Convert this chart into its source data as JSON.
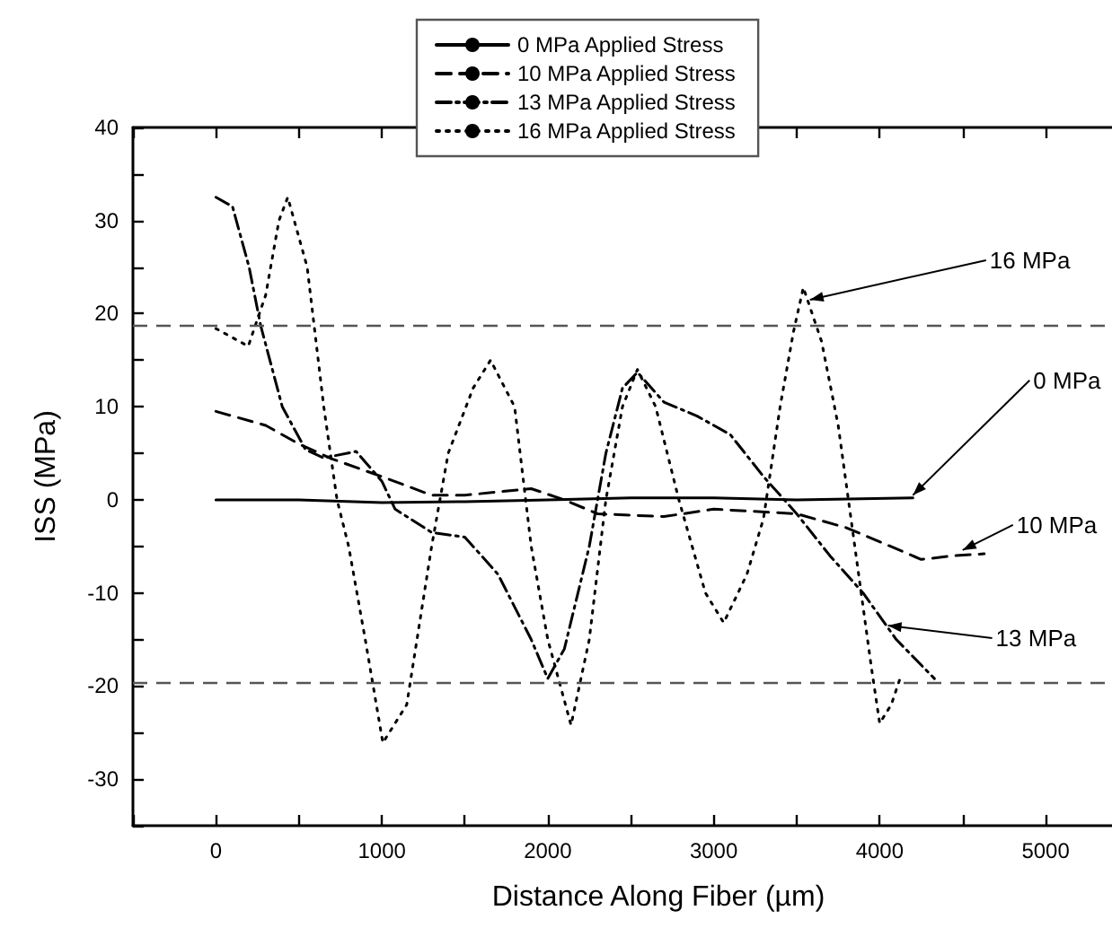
{
  "chart_data": {
    "type": "line",
    "xlabel": "Distance Along Fiber (µm)",
    "ylabel": "ISS (MPa)",
    "xlim": [
      -500,
      5400
    ],
    "ylim": [
      -35,
      40
    ],
    "xticks": [
      {
        "value": -500,
        "label": null
      },
      0,
      {
        "value": 500,
        "label": null
      },
      1000,
      {
        "value": 1500,
        "label": null
      },
      2000,
      {
        "value": 2500,
        "label": null
      },
      3000,
      {
        "value": 3500,
        "label": null
      },
      4000,
      {
        "value": 4500,
        "label": null
      },
      5000
    ],
    "yticks": [
      {
        "value": -35,
        "label": null
      },
      -30,
      {
        "value": -25,
        "label": null
      },
      -20,
      {
        "value": -15,
        "label": null
      },
      -10,
      {
        "value": -5,
        "label": null
      },
      0,
      {
        "value": 5,
        "label": null
      },
      10,
      {
        "value": 15,
        "label": null
      },
      20,
      {
        "value": 25,
        "label": null
      },
      30,
      {
        "value": 35,
        "label": null
      },
      40
    ],
    "grid": false,
    "legend": "top",
    "marker": "none",
    "series": [
      {
        "name": "0 MPa Applied Stress",
        "color": "#000000",
        "line_style": "solid",
        "x": [
          0,
          500,
          1000,
          1500,
          2000,
          2500,
          3000,
          3500,
          4200
        ],
        "values": [
          0,
          0,
          -0.3,
          -0.2,
          0,
          0.2,
          0.2,
          0,
          0.2
        ]
      },
      {
        "name": "10 MPa Applied Stress",
        "color": "#000000",
        "line_style": "dashed",
        "x": [
          0,
          300,
          500,
          700,
          1000,
          1300,
          1500,
          1900,
          2100,
          2300,
          2700,
          3000,
          3500,
          3800,
          4000,
          4250,
          4450,
          4630
        ],
        "values": [
          9.5,
          8,
          6,
          4.4,
          2.5,
          0.5,
          0.5,
          1.2,
          0,
          -1.5,
          -1.8,
          -1,
          -1.5,
          -3,
          -4.5,
          -6.4,
          -6,
          -5.8
        ]
      },
      {
        "name": "13 MPa Applied Stress",
        "color": "#000000",
        "line_style": "dash-dot",
        "x": [
          0,
          100,
          200,
          270,
          400,
          540,
          650,
          845,
          1000,
          1080,
          1300,
          1500,
          1700,
          1900,
          2000,
          2100,
          2250,
          2350,
          2450,
          2540,
          2700,
          2900,
          3100,
          3300,
          3500,
          3700,
          3900,
          4100,
          4330
        ],
        "values": [
          32.5,
          31.5,
          25,
          18.7,
          10,
          5.4,
          4.5,
          5.2,
          2,
          -1,
          -3.5,
          -4,
          -8,
          -15,
          -19.2,
          -16,
          -5,
          5,
          12,
          13.7,
          10.5,
          9,
          7,
          2.5,
          -1.5,
          -6,
          -10,
          -15,
          -19.2
        ]
      },
      {
        "name": "16 MPa Applied Stress",
        "color": "#000000",
        "line_style": "dotted",
        "x": [
          0,
          195,
          300,
          380,
          433,
          550,
          650,
          730,
          800,
          900,
          1006,
          1150,
          1300,
          1400,
          1550,
          1655,
          1800,
          1900,
          2000,
          2140,
          2250,
          2350,
          2450,
          2540,
          2650,
          2790,
          2950,
          3060,
          3200,
          3300,
          3400,
          3480,
          3540,
          3650,
          3750,
          3850,
          3950,
          4000,
          4070,
          4130
        ],
        "values": [
          18.4,
          16.5,
          22,
          30,
          32.5,
          25,
          10,
          0,
          -5,
          -15,
          -26.1,
          -22,
          -5,
          5,
          12,
          15,
          10,
          -5,
          -15,
          -24.2,
          -15,
          0,
          10,
          14,
          10,
          0,
          -10,
          -13.2,
          -8,
          -2,
          10,
          18,
          22.8,
          17,
          8,
          -5,
          -18,
          -24,
          -22,
          -18.8
        ]
      }
    ],
    "ref_lines": [
      {
        "axis": "y",
        "value": 18.7,
        "color": "#555555",
        "line_style": "dashed"
      },
      {
        "axis": "y",
        "value": -19.6,
        "color": "#555555",
        "line_style": "dashed"
      }
    ],
    "annotations": [
      {
        "text": "16 MPa",
        "x": 3580,
        "y": 21.5
      },
      {
        "text": "0 MPa",
        "x": 4200,
        "y": 0.5
      },
      {
        "text": "10 MPa",
        "x": 4500,
        "y": -5.4
      },
      {
        "text": "13 MPa",
        "x": 4050,
        "y": -13.5
      }
    ]
  }
}
